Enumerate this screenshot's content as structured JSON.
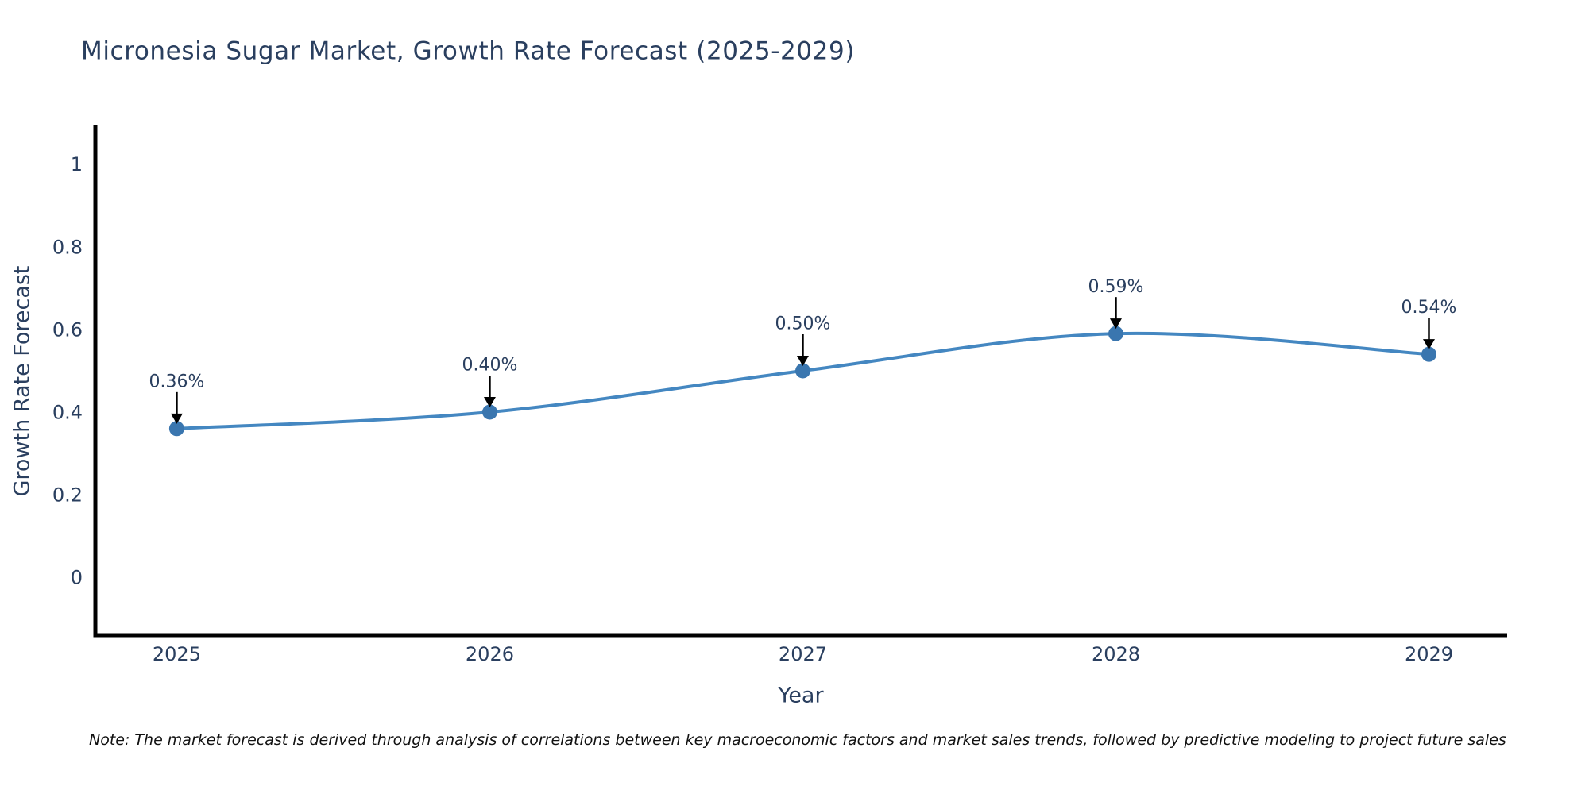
{
  "chart_data": {
    "type": "line",
    "title": "Micronesia Sugar Market, Growth Rate Forecast (2025-2029)",
    "xlabel": "Year",
    "ylabel": "Growth Rate Forecast",
    "x": [
      2025,
      2026,
      2027,
      2028,
      2029
    ],
    "x_tick_labels": [
      "2025",
      "2026",
      "2027",
      "2028",
      "2029"
    ],
    "values": [
      0.36,
      0.4,
      0.5,
      0.59,
      0.54
    ],
    "point_labels": [
      "0.36%",
      "0.40%",
      "0.50%",
      "0.59%",
      "0.54%"
    ],
    "y_ticks": [
      0,
      0.2,
      0.4,
      0.6,
      0.8,
      1
    ],
    "y_tick_labels": [
      "0",
      "0.2",
      "0.4",
      "0.6",
      "0.8",
      "1"
    ],
    "xlim": [
      2024.74,
      2029.25
    ],
    "ylim": [
      -0.14,
      1.09
    ],
    "grid": false,
    "legend": "none",
    "line_shape": "spline",
    "line_color": "#4487c1",
    "marker_color": "#3a76af",
    "annotation_arrow_color": "#000000",
    "text_color": "#2a3f5f",
    "axis_color": "#000000"
  },
  "footnote": {
    "text": "Note: The market forecast is derived through analysis of correlations between key macroeconomic factors and market sales trends, followed by predictive modeling to project future sales"
  }
}
